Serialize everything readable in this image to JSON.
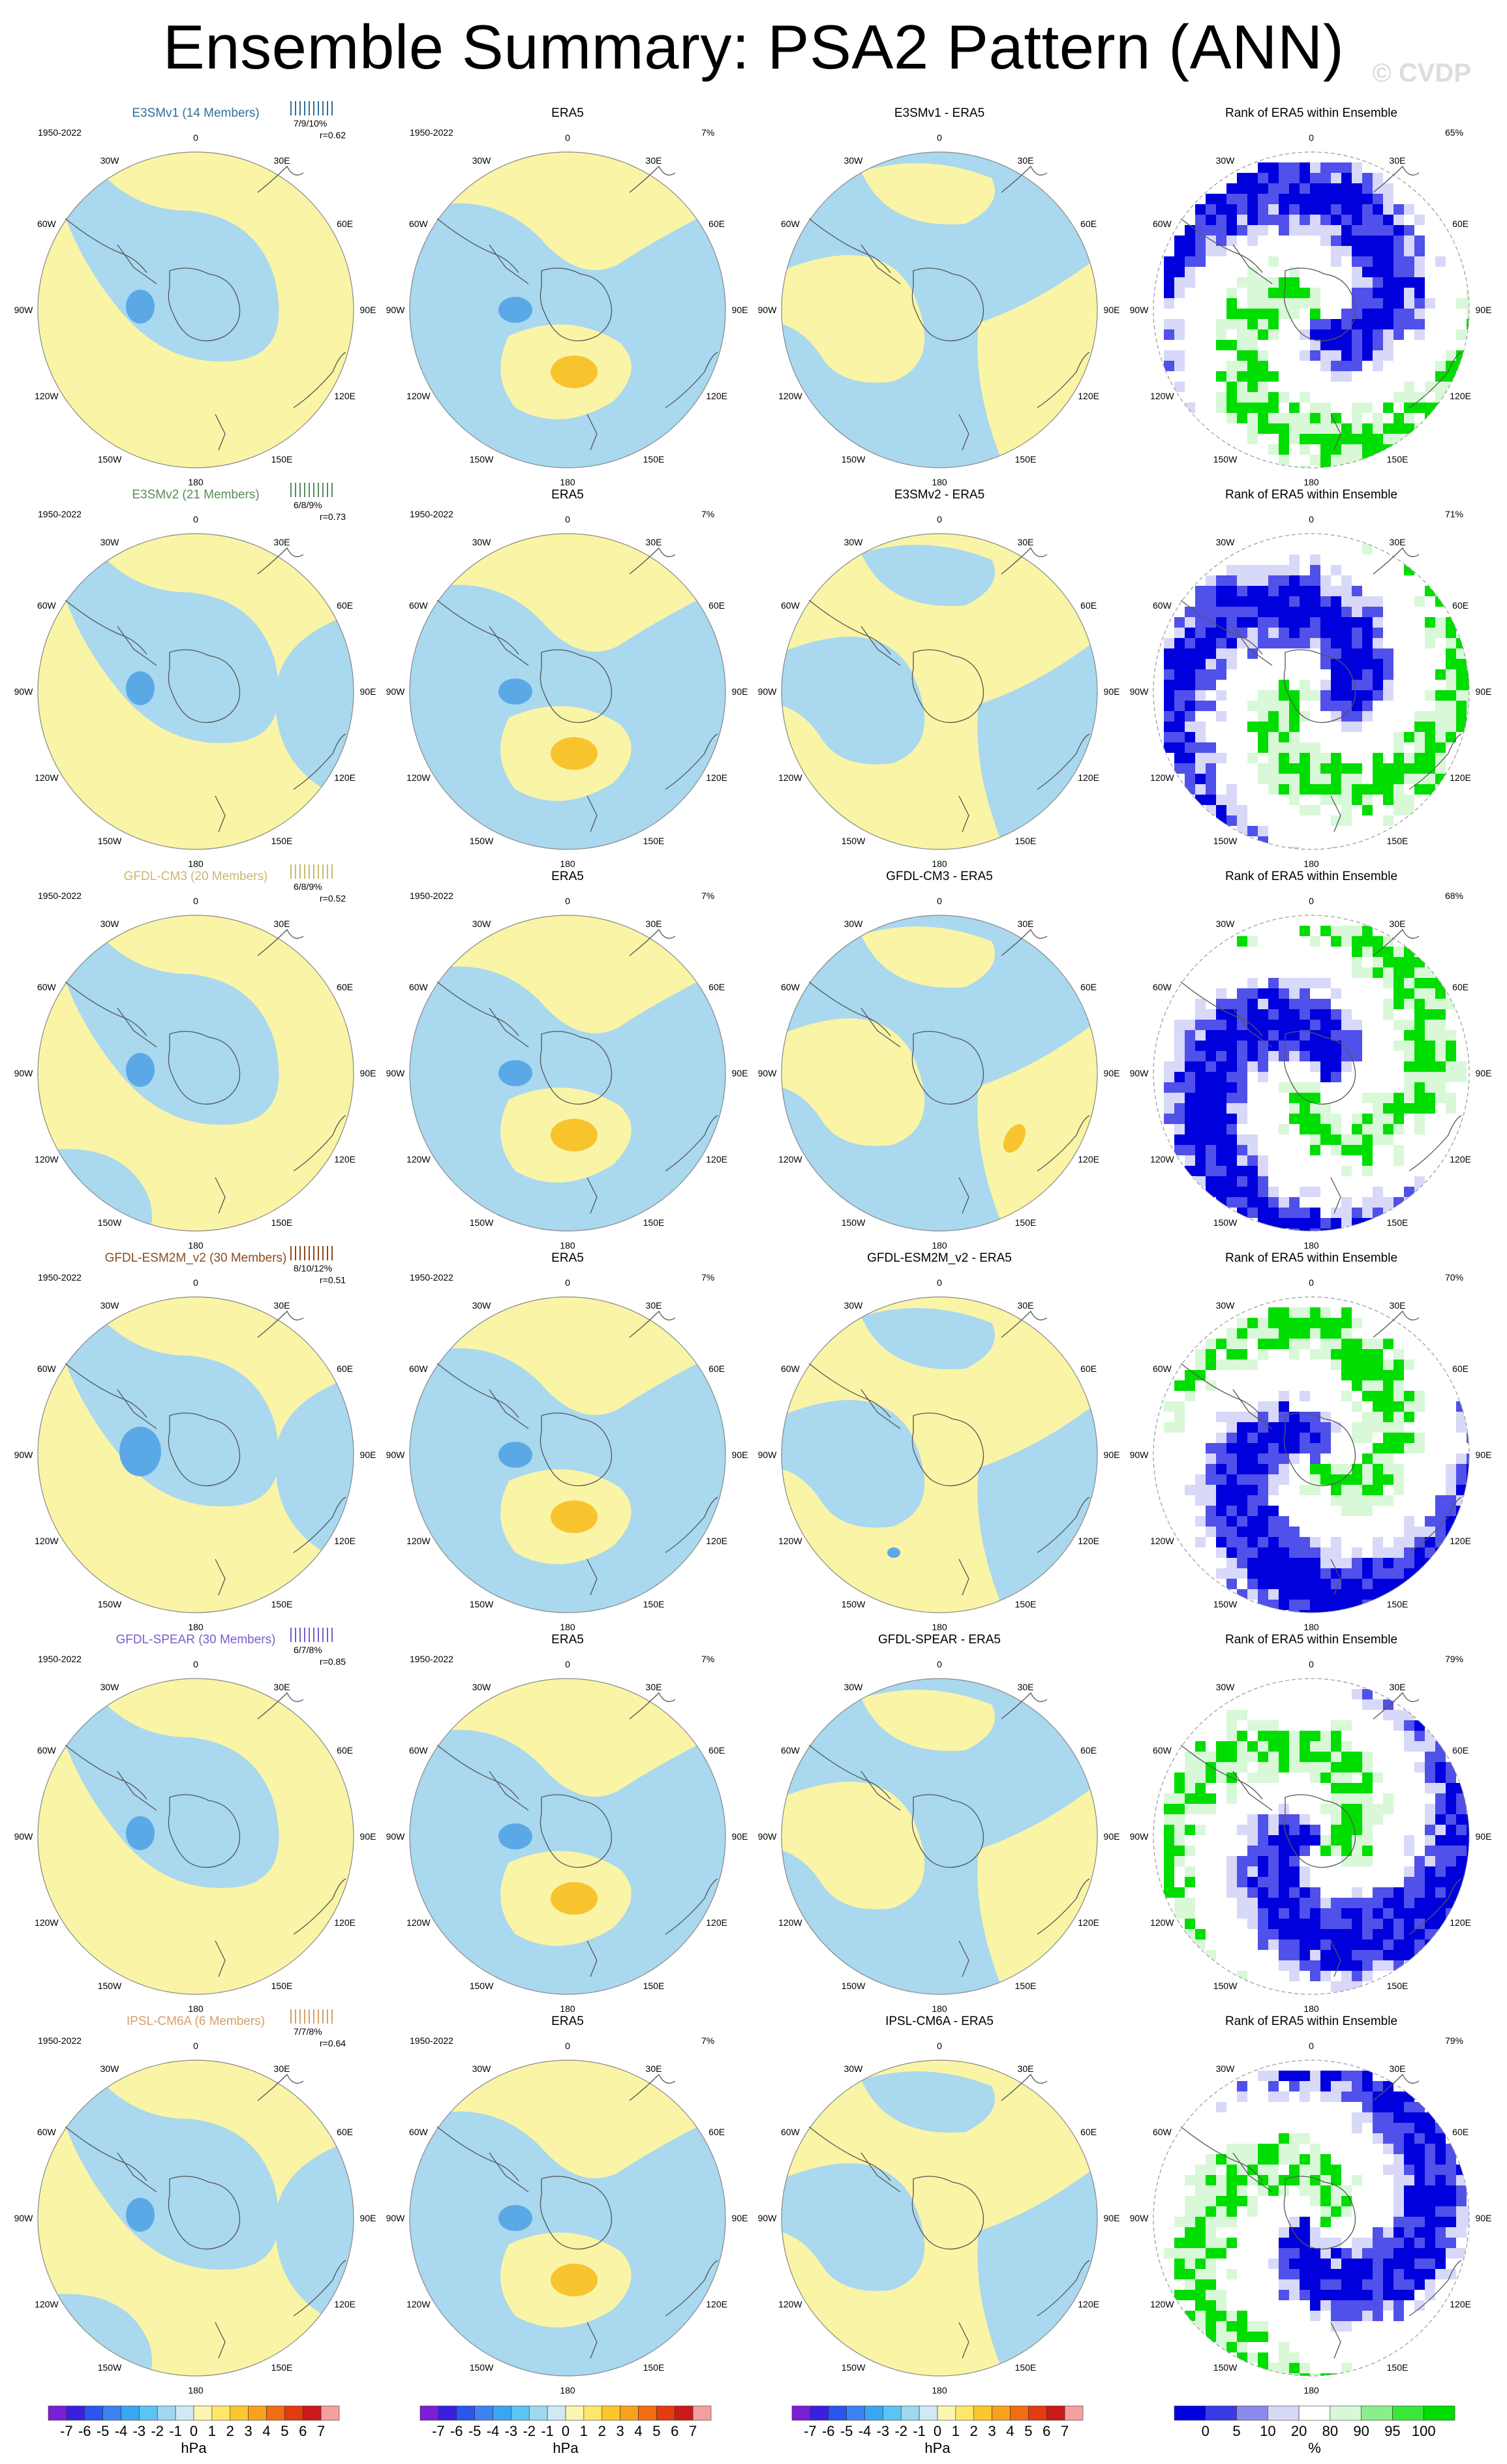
{
  "title": "Ensemble Summary: PSA2 Pattern (ANN)",
  "credit": "© CVDP",
  "period": "1950-2022",
  "obs_name": "ERA5",
  "obs_pct": "7%",
  "rank_title": "Rank of ERA5 within Ensemble",
  "lon_labels": [
    "0",
    "30E",
    "60E",
    "90E",
    "120E",
    "150E",
    "180",
    "150W",
    "120W",
    "90W",
    "60W",
    "30W"
  ],
  "models": [
    {
      "title": "E3SMv1 (14 Members)",
      "color": "#2f6f9a",
      "pct": "7/9/10%",
      "r": "r=0.62",
      "diff_title": "E3SMv1 - ERA5",
      "rank_pct": "65%"
    },
    {
      "title": "E3SMv2 (21 Members)",
      "color": "#5a8c5a",
      "pct": "6/8/9%",
      "r": "r=0.73",
      "diff_title": "E3SMv2 - ERA5",
      "rank_pct": "71%"
    },
    {
      "title": "GFDL-CM3 (20 Members)",
      "color": "#c8b870",
      "pct": "6/8/9%",
      "r": "r=0.52",
      "diff_title": "GFDL-CM3 - ERA5",
      "rank_pct": "68%"
    },
    {
      "title": "GFDL-ESM2M_v2 (30 Members)",
      "color": "#8a4a20",
      "pct": "8/10/12%",
      "r": "r=0.51",
      "diff_title": "GFDL-ESM2M_v2 - ERA5",
      "rank_pct": "70%"
    },
    {
      "title": "GFDL-SPEAR (30 Members)",
      "color": "#7b5ccc",
      "pct": "6/7/8%",
      "r": "r=0.85",
      "diff_title": "GFDL-SPEAR - ERA5",
      "rank_pct": "79%"
    },
    {
      "title": "IPSL-CM6A (6 Members)",
      "color": "#d6a06a",
      "pct": "7/7/8%",
      "r": "r=0.64",
      "diff_title": "IPSL-CM6A - ERA5",
      "rank_pct": "79%"
    }
  ],
  "colorbar": {
    "labels": [
      "-7",
      "-6",
      "-5",
      "-4",
      "-3",
      "-2",
      "-1",
      "0",
      "1",
      "2",
      "3",
      "4",
      "5",
      "6",
      "7"
    ],
    "colors": [
      "#7a1fd6",
      "#3b1fe0",
      "#2a55ee",
      "#3d82f0",
      "#3aa6f2",
      "#5cc3f2",
      "#9fd8ef",
      "#cfe9f5",
      "#fbf5b0",
      "#fde66a",
      "#fcc72d",
      "#f8a21c",
      "#f16c13",
      "#e33b0f",
      "#cc1a1a",
      "#f5a0a0"
    ],
    "unit": "hPa"
  },
  "rank_colorbar": {
    "labels": [
      "0",
      "5",
      "10",
      "20",
      "80",
      "90",
      "95",
      "100"
    ],
    "colors": [
      "#0000dd",
      "#3a3ae6",
      "#8a8aee",
      "#d8d8f8",
      "#ffffff",
      "#d8f8d8",
      "#8aee8a",
      "#3ae63a",
      "#00dd00"
    ],
    "unit": "%"
  }
}
